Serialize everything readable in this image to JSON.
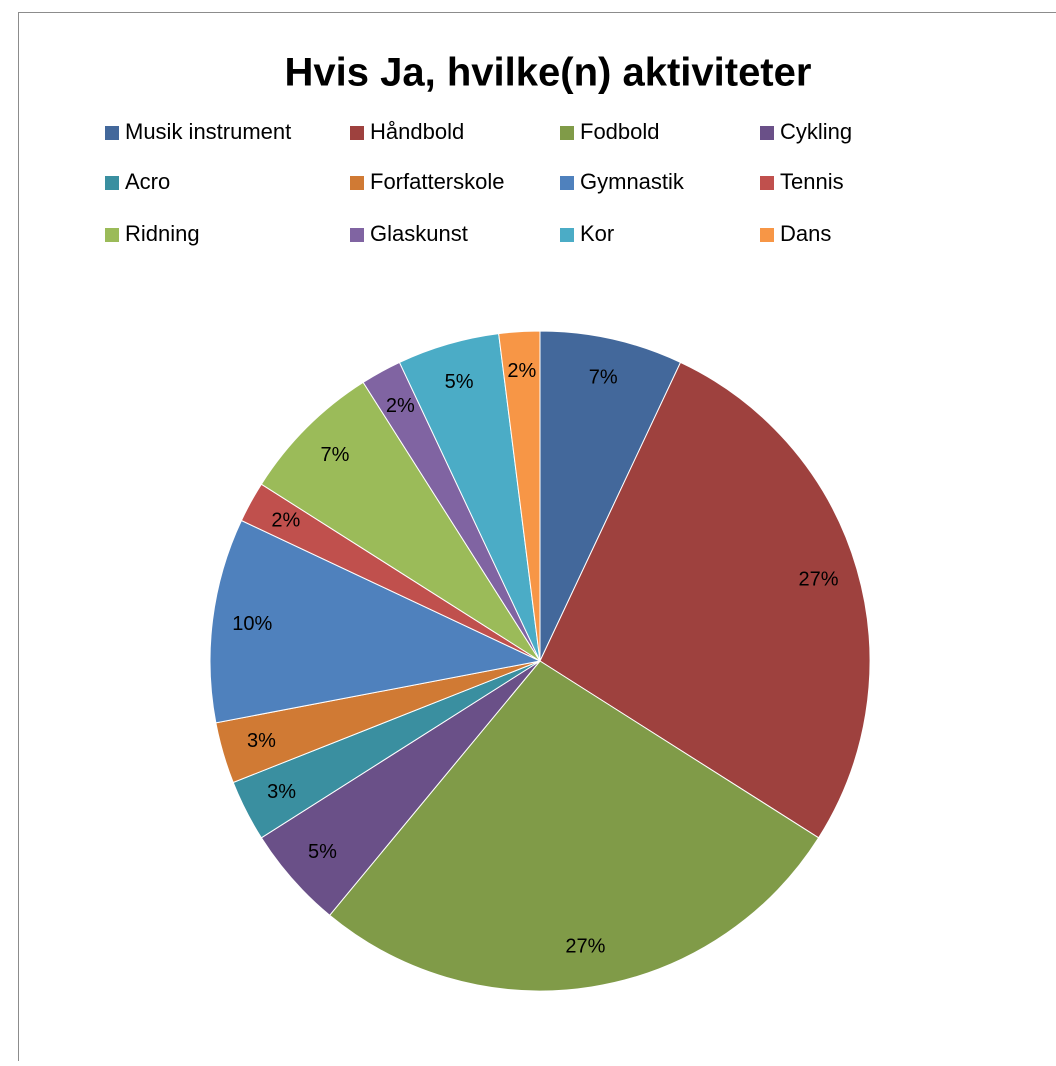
{
  "chart_data": {
    "type": "pie",
    "title": "Hvis Ja, hvilke(n) aktiviteter",
    "categories": [
      "Musik instrument",
      "Håndbold",
      "Fodbold",
      "Cykling",
      "Acro",
      "Forfatterskole",
      "Gymnastik",
      "Tennis",
      "Ridning",
      "Glaskunst",
      "Kor",
      "Dans"
    ],
    "values": [
      7,
      27,
      27,
      5,
      3,
      3,
      10,
      2,
      7,
      2,
      5,
      2
    ],
    "value_labels": [
      "7%",
      "27%",
      "27%",
      "5%",
      "3%",
      "3%",
      "10%",
      "2%",
      "7%",
      "2%",
      "5%",
      "2%"
    ],
    "colors": [
      "#43689b",
      "#9e413e",
      "#809b48",
      "#6a5088",
      "#3a8fa0",
      "#d07a34",
      "#4f81bd",
      "#c0504d",
      "#9bbb59",
      "#8064a2",
      "#4bacc6",
      "#f79646"
    ],
    "legend": "top"
  }
}
